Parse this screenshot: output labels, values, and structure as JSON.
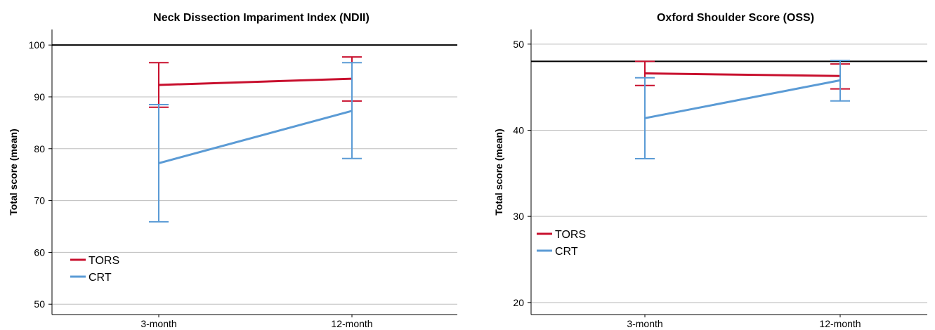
{
  "chart_data": [
    {
      "type": "line",
      "title": "Neck Dissection Impariment Index (NDII)",
      "ylabel": "Total score (mean)",
      "xlabel": "",
      "categories": [
        "3-month",
        "12-month"
      ],
      "ylim": [
        48,
        103
      ],
      "yticks": [
        50,
        60,
        70,
        80,
        90,
        100
      ],
      "grid": true,
      "reference_line": 100,
      "legend_position": "bottom-left",
      "colors": {
        "reference": "#000000",
        "grid": "#bdbdbd",
        "axis": "#000000"
      },
      "series": [
        {
          "name": "TORS",
          "color": "#c8102e",
          "values": [
            92.3,
            93.5
          ],
          "error_low": [
            88.0,
            89.2
          ],
          "error_high": [
            96.6,
            97.7
          ]
        },
        {
          "name": "CRT",
          "color": "#5b9bd5",
          "values": [
            77.2,
            87.3
          ],
          "error_low": [
            65.9,
            78.1
          ],
          "error_high": [
            88.5,
            96.6
          ]
        }
      ]
    },
    {
      "type": "line",
      "title": "Oxford Shoulder Score (OSS)",
      "ylabel": "Total score (mean)",
      "xlabel": "",
      "categories": [
        "3-month",
        "12-month"
      ],
      "ylim": [
        18.6,
        51.7
      ],
      "yticks": [
        20,
        30,
        40,
        50
      ],
      "grid": true,
      "reference_line": 48,
      "legend_position": "middle-left",
      "colors": {
        "reference": "#000000",
        "grid": "#bdbdbd",
        "axis": "#000000"
      },
      "series": [
        {
          "name": "TORS",
          "color": "#c8102e",
          "values": [
            46.6,
            46.3
          ],
          "error_low": [
            45.2,
            44.8
          ],
          "error_high": [
            48.0,
            47.7
          ]
        },
        {
          "name": "CRT",
          "color": "#5b9bd5",
          "values": [
            41.4,
            45.8
          ],
          "error_low": [
            36.7,
            43.4
          ],
          "error_high": [
            46.1,
            48.1
          ]
        }
      ]
    }
  ]
}
